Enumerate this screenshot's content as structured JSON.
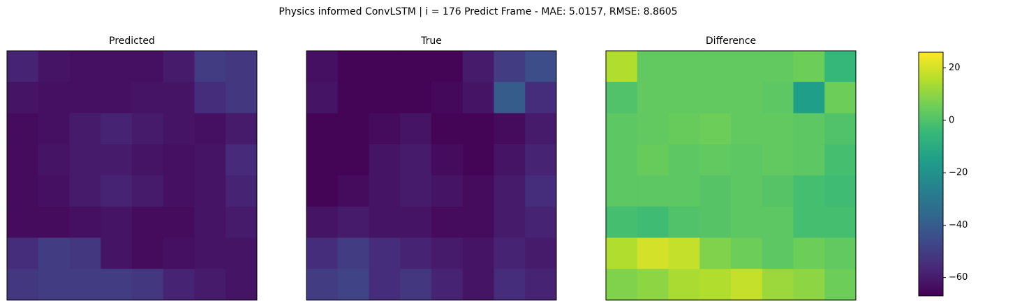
{
  "title": "Physics informed ConvLSTM | i = 176 Predict Frame - MAE: 5.0157, RMSE: 8.8605",
  "colorbar": {
    "colormap": "viridis",
    "clim": [
      -67,
      26
    ],
    "ticks": [
      {
        "value": -60,
        "label": "−60"
      },
      {
        "value": -40,
        "label": "−40"
      },
      {
        "value": -20,
        "label": "−20"
      },
      0,
      20
    ]
  },
  "chart_data": [
    {
      "type": "heatmap",
      "title": "Predicted",
      "values": [
        [
          -58,
          -62,
          -63,
          -63,
          -63,
          -60,
          -50,
          -52
        ],
        [
          -62,
          -63,
          -63,
          -63,
          -62,
          -62,
          -55,
          -52
        ],
        [
          -64,
          -63,
          -60,
          -58,
          -60,
          -62,
          -63,
          -60
        ],
        [
          -64,
          -62,
          -60,
          -60,
          -62,
          -63,
          -62,
          -56
        ],
        [
          -64,
          -63,
          -60,
          -58,
          -60,
          -63,
          -62,
          -58
        ],
        [
          -64,
          -64,
          -63,
          -62,
          -64,
          -64,
          -62,
          -60
        ],
        [
          -55,
          -50,
          -52,
          -62,
          -64,
          -63,
          -62,
          -62
        ],
        [
          -52,
          -50,
          -50,
          -50,
          -52,
          -58,
          -60,
          -62
        ]
      ]
    },
    {
      "type": "heatmap",
      "title": "True",
      "values": [
        [
          -63,
          -66,
          -66,
          -66,
          -66,
          -60,
          -50,
          -45
        ],
        [
          -62,
          -66,
          -66,
          -66,
          -65,
          -62,
          -40,
          -55
        ],
        [
          -66,
          -66,
          -64,
          -62,
          -66,
          -66,
          -64,
          -60
        ],
        [
          -66,
          -66,
          -62,
          -60,
          -64,
          -66,
          -62,
          -58
        ],
        [
          -66,
          -64,
          -62,
          -60,
          -62,
          -64,
          -60,
          -55
        ],
        [
          -62,
          -60,
          -62,
          -62,
          -64,
          -64,
          -60,
          -58
        ],
        [
          -55,
          -50,
          -55,
          -58,
          -60,
          -62,
          -58,
          -60
        ],
        [
          -50,
          -48,
          -55,
          -52,
          -58,
          -62,
          -55,
          -58
        ]
      ]
    },
    {
      "type": "heatmap",
      "title": "Difference",
      "values": [
        [
          15,
          3,
          3,
          3,
          3,
          3,
          5,
          -5
        ],
        [
          0,
          3,
          3,
          3,
          3,
          2,
          -15,
          5
        ],
        [
          2,
          3,
          4,
          5,
          3,
          3,
          2,
          0
        ],
        [
          2,
          4,
          2,
          3,
          2,
          3,
          2,
          -2
        ],
        [
          2,
          2,
          2,
          1,
          2,
          1,
          -2,
          -3
        ],
        [
          -2,
          -3,
          0,
          1,
          2,
          2,
          -2,
          -2
        ],
        [
          15,
          20,
          18,
          8,
          5,
          2,
          5,
          3
        ],
        [
          8,
          10,
          14,
          15,
          18,
          12,
          10,
          5
        ]
      ]
    }
  ]
}
